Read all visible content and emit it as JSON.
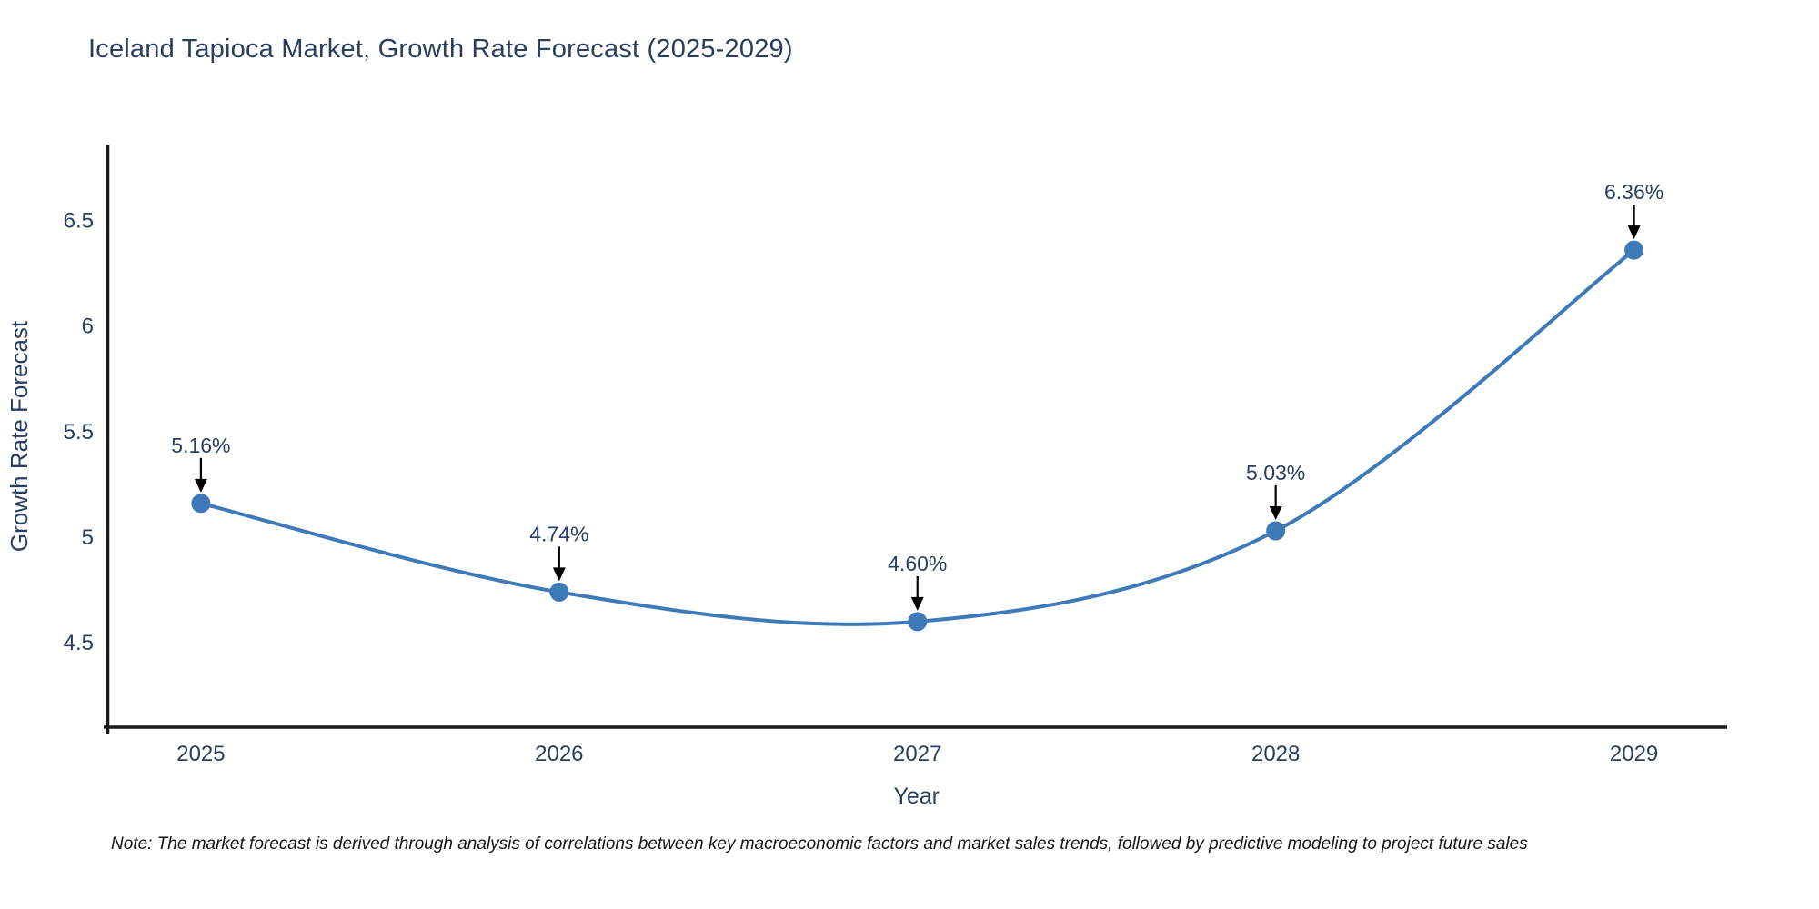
{
  "title": "Iceland Tapioca Market, Growth Rate Forecast (2025-2029)",
  "note": "Note: The market forecast is derived through analysis of correlations between key macroeconomic factors and market sales trends, followed by predictive modeling to project future sales",
  "colors": {
    "line": "#3e7ab7",
    "marker": "#3e7ab7",
    "text": "#2a3f5f",
    "axis": "#1a1a1a",
    "arrow": "#000000",
    "background": "#ffffff"
  },
  "chart_data": {
    "type": "line",
    "line_shape": "spline",
    "x": [
      2025,
      2026,
      2027,
      2028,
      2029
    ],
    "values": [
      5.16,
      4.74,
      4.6,
      5.03,
      6.36
    ],
    "point_labels": [
      "5.16%",
      "4.74%",
      "4.60%",
      "5.03%",
      "6.36%"
    ],
    "title": "Iceland Tapioca Market, Growth Rate Forecast (2025-2029)",
    "xlabel": "Year",
    "ylabel": "Growth Rate Forecast",
    "xticks": [
      2025,
      2026,
      2027,
      2028,
      2029
    ],
    "xtick_labels": [
      "2025",
      "2026",
      "2027",
      "2028",
      "2029"
    ],
    "yticks": [
      4.5,
      5.0,
      5.5,
      6.0,
      6.5
    ],
    "ytick_labels": [
      "4.5",
      "5",
      "5.5",
      "6",
      "6.5"
    ],
    "xlim": [
      2024.74,
      2029.26
    ],
    "ylim": [
      4.1,
      6.86
    ],
    "grid": false,
    "legend": "none"
  }
}
